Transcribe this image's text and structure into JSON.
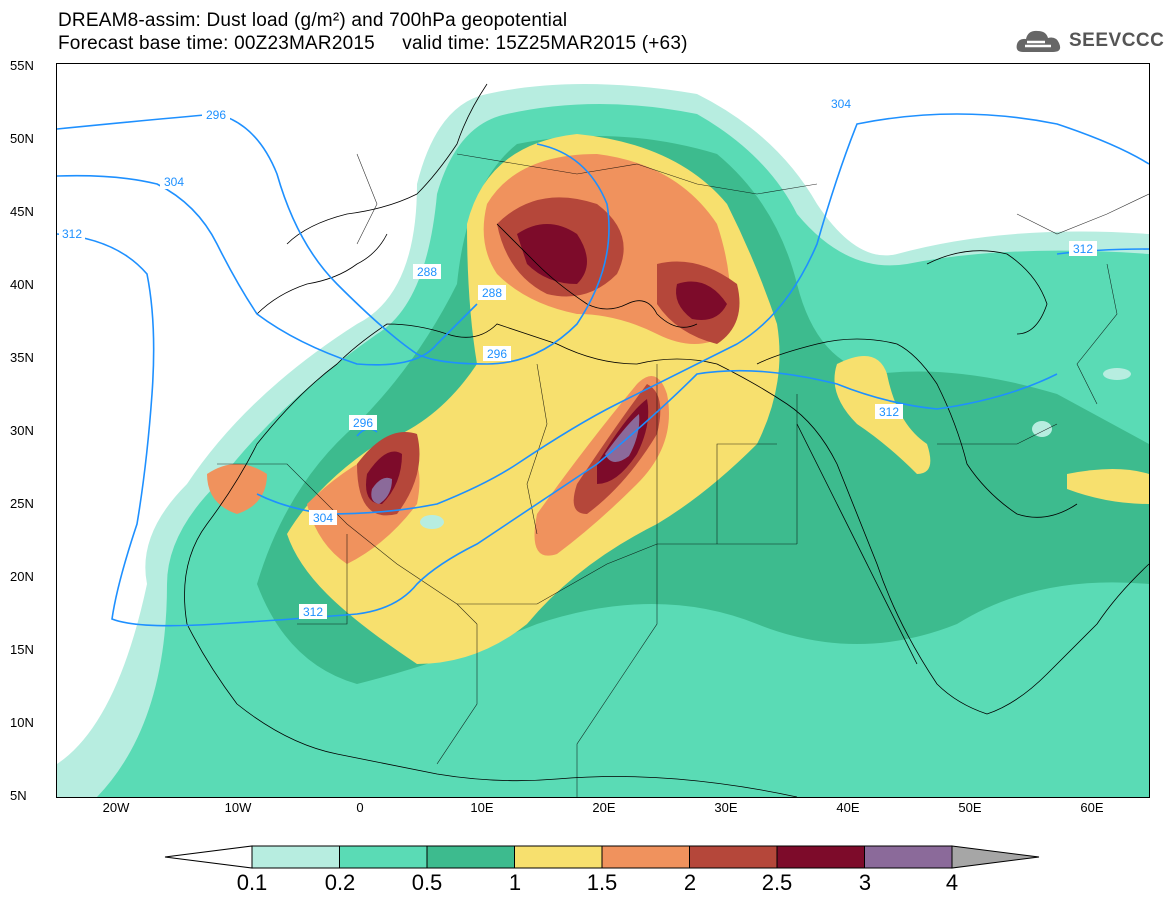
{
  "header": {
    "title_line1": "DREAM8-assim: Dust load (g/m²) and 700hPa geopotential",
    "title_line2": "Forecast base time: 00Z23MAR2015     valid time: 15Z25MAR2015 (+63)",
    "logo_text": "SEEVCCC"
  },
  "map": {
    "lat_labels": [
      "55N",
      "50N",
      "45N",
      "40N",
      "35N",
      "30N",
      "25N",
      "20N",
      "15N",
      "10N",
      "5N"
    ],
    "lon_labels": [
      "20W",
      "10W",
      "0",
      "10E",
      "20E",
      "30E",
      "40E",
      "50E",
      "60E"
    ],
    "contour_labels": [
      "296",
      "304",
      "312",
      "288",
      "288",
      "296",
      "296",
      "304",
      "312",
      "304",
      "312",
      "312"
    ],
    "contour_color": "#1e90ff",
    "land_background": "#ffffff",
    "border_color": "#000000"
  },
  "colorbar": {
    "labels": [
      "0.1",
      "0.2",
      "0.5",
      "1",
      "1.5",
      "2",
      "2.5",
      "3",
      "4"
    ],
    "colors": [
      "#b7ede0",
      "#5adbb5",
      "#3dbb8e",
      "#f7e06e",
      "#f0925d",
      "#b5473a",
      "#7d0b2a",
      "#8b6a9a",
      "#a6a6a6"
    ]
  }
}
